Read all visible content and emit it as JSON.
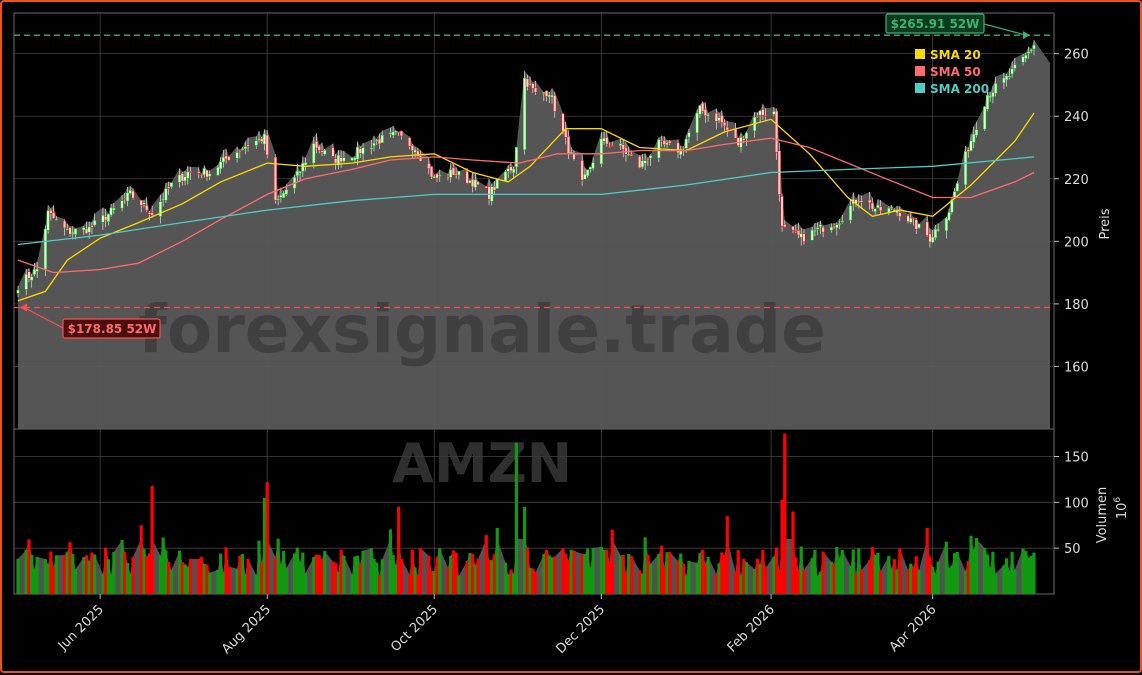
{
  "chart_data": {
    "type": "candlestick",
    "ticker_watermark": "AMZN",
    "site_watermark": "forexsignale.trade",
    "price_ylabel": "Preis",
    "volume_ylabel": "Volumen",
    "volume_unit": "10",
    "volume_unit_exp": "6",
    "price_ylim": [
      140,
      273
    ],
    "price_yticks": [
      160,
      180,
      200,
      220,
      240,
      260
    ],
    "volume_ylim": [
      0,
      180
    ],
    "volume_yticks": [
      50,
      100,
      150
    ],
    "x_ticks": [
      {
        "date": "2025-06-01",
        "label": "Jun 2025"
      },
      {
        "date": "2025-08-01",
        "label": "Aug 2025"
      },
      {
        "date": "2025-10-01",
        "label": "Oct 2025"
      },
      {
        "date": "2025-12-01",
        "label": "Dec 2025"
      },
      {
        "date": "2026-02-01",
        "label": "Feb 2026"
      },
      {
        "date": "2026-04-01",
        "label": "Apr 2026"
      }
    ],
    "high_52w": {
      "value": 265.91,
      "label": "$265.91 52W"
    },
    "low_52w": {
      "value": 178.85,
      "label": "$178.85 52W"
    },
    "legend": [
      {
        "label": "SMA 20",
        "color": "#ffd700"
      },
      {
        "label": "SMA 50",
        "color": "#ff6b6b"
      },
      {
        "label": "SMA 200",
        "color": "#4ecdc4"
      }
    ],
    "legend_placement": "top-right",
    "colors": {
      "up": "#00c800",
      "down": "#ff0000",
      "area": "#5a5a5a",
      "high_line": "#3cb371",
      "low_line": "#ff4d4d"
    },
    "close_anchors": [
      [
        "2025-05-02",
        186
      ],
      [
        "2025-05-09",
        191
      ],
      [
        "2025-05-13",
        209
      ],
      [
        "2025-05-20",
        203
      ],
      [
        "2025-05-28",
        204
      ],
      [
        "2025-06-06",
        210
      ],
      [
        "2025-06-12",
        215
      ],
      [
        "2025-06-20",
        209
      ],
      [
        "2025-06-27",
        218
      ],
      [
        "2025-07-03",
        222
      ],
      [
        "2025-07-11",
        222
      ],
      [
        "2025-07-18",
        227
      ],
      [
        "2025-07-25",
        231
      ],
      [
        "2025-07-31",
        233
      ],
      [
        "2025-08-04",
        212
      ],
      [
        "2025-08-12",
        221
      ],
      [
        "2025-08-18",
        231
      ],
      [
        "2025-08-25",
        226
      ],
      [
        "2025-09-02",
        228
      ],
      [
        "2025-09-10",
        232
      ],
      [
        "2025-09-17",
        234
      ],
      [
        "2025-09-24",
        230
      ],
      [
        "2025-10-01",
        220
      ],
      [
        "2025-10-08",
        222
      ],
      [
        "2025-10-15",
        219
      ],
      [
        "2025-10-21",
        215
      ],
      [
        "2025-10-27",
        222
      ],
      [
        "2025-10-30",
        224
      ],
      [
        "2025-11-03",
        252
      ],
      [
        "2025-11-07",
        247
      ],
      [
        "2025-11-12",
        248
      ],
      [
        "2025-11-18",
        232
      ],
      [
        "2025-11-24",
        218
      ],
      [
        "2025-12-01",
        232
      ],
      [
        "2025-12-08",
        230
      ],
      [
        "2025-12-15",
        224
      ],
      [
        "2025-12-22",
        231
      ],
      [
        "2025-12-30",
        229
      ],
      [
        "2026-01-06",
        242
      ],
      [
        "2026-01-13",
        239
      ],
      [
        "2026-01-20",
        231
      ],
      [
        "2026-01-27",
        241
      ],
      [
        "2026-02-02",
        241
      ],
      [
        "2026-02-05",
        204
      ],
      [
        "2026-02-12",
        201
      ],
      [
        "2026-02-19",
        204
      ],
      [
        "2026-02-26",
        207
      ],
      [
        "2026-03-05",
        214
      ],
      [
        "2026-03-12",
        210
      ],
      [
        "2026-03-19",
        210
      ],
      [
        "2026-03-26",
        205
      ],
      [
        "2026-03-31",
        201
      ],
      [
        "2026-04-07",
        210
      ],
      [
        "2026-04-14",
        230
      ],
      [
        "2026-04-21",
        247
      ],
      [
        "2026-04-28",
        252
      ],
      [
        "2026-05-05",
        259
      ],
      [
        "2026-05-08",
        263
      ]
    ],
    "volume_spikes": [
      [
        "2025-08-01",
        122
      ],
      [
        "2025-07-31",
        105
      ],
      [
        "2025-06-20",
        118
      ],
      [
        "2025-11-01",
        165
      ],
      [
        "2025-11-03",
        95
      ],
      [
        "2025-09-18",
        95
      ],
      [
        "2026-02-06",
        175
      ],
      [
        "2026-02-05",
        103
      ],
      [
        "2026-02-09",
        90
      ],
      [
        "2025-06-16",
        75
      ],
      [
        "2025-10-24",
        72
      ],
      [
        "2026-01-16",
        85
      ]
    ],
    "series": [
      {
        "name": "SMA 20",
        "values": [
          [
            "2025-05-02",
            181
          ],
          [
            "2025-05-12",
            184
          ],
          [
            "2025-05-20",
            194
          ],
          [
            "2025-06-01",
            201
          ],
          [
            "2025-06-15",
            206
          ],
          [
            "2025-07-01",
            212
          ],
          [
            "2025-07-15",
            219
          ],
          [
            "2025-08-01",
            225
          ],
          [
            "2025-08-15",
            224
          ],
          [
            "2025-09-01",
            225
          ],
          [
            "2025-09-15",
            227
          ],
          [
            "2025-10-01",
            228
          ],
          [
            "2025-10-15",
            222
          ],
          [
            "2025-10-28",
            219
          ],
          [
            "2025-11-05",
            224
          ],
          [
            "2025-11-18",
            236
          ],
          [
            "2025-12-01",
            236
          ],
          [
            "2025-12-15",
            230
          ],
          [
            "2026-01-01",
            229
          ],
          [
            "2026-01-15",
            235
          ],
          [
            "2026-02-01",
            239
          ],
          [
            "2026-02-15",
            228
          ],
          [
            "2026-03-01",
            214
          ],
          [
            "2026-03-10",
            208
          ],
          [
            "2026-03-20",
            210
          ],
          [
            "2026-04-01",
            208
          ],
          [
            "2026-04-15",
            218
          ],
          [
            "2026-05-01",
            232
          ],
          [
            "2026-05-08",
            241
          ]
        ]
      },
      {
        "name": "SMA 50",
        "values": [
          [
            "2025-05-02",
            194
          ],
          [
            "2025-05-15",
            190
          ],
          [
            "2025-06-01",
            191
          ],
          [
            "2025-06-15",
            193
          ],
          [
            "2025-07-01",
            200
          ],
          [
            "2025-07-15",
            207
          ],
          [
            "2025-08-01",
            215
          ],
          [
            "2025-08-15",
            220
          ],
          [
            "2025-09-01",
            223
          ],
          [
            "2025-09-15",
            226
          ],
          [
            "2025-10-01",
            227
          ],
          [
            "2025-10-15",
            226
          ],
          [
            "2025-11-01",
            225
          ],
          [
            "2025-11-15",
            228
          ],
          [
            "2025-12-01",
            228
          ],
          [
            "2025-12-15",
            229
          ],
          [
            "2026-01-01",
            229
          ],
          [
            "2026-01-15",
            231
          ],
          [
            "2026-02-01",
            233
          ],
          [
            "2026-02-15",
            230
          ],
          [
            "2026-03-01",
            225
          ],
          [
            "2026-03-15",
            220
          ],
          [
            "2026-04-01",
            214
          ],
          [
            "2026-04-15",
            214
          ],
          [
            "2026-05-01",
            219
          ],
          [
            "2026-05-08",
            222
          ]
        ]
      },
      {
        "name": "SMA 200",
        "values": [
          [
            "2025-05-02",
            199
          ],
          [
            "2025-06-01",
            202
          ],
          [
            "2025-07-01",
            206
          ],
          [
            "2025-08-01",
            210
          ],
          [
            "2025-09-01",
            213
          ],
          [
            "2025-10-01",
            215
          ],
          [
            "2025-11-01",
            215
          ],
          [
            "2025-12-01",
            215
          ],
          [
            "2026-01-01",
            218
          ],
          [
            "2026-02-01",
            222
          ],
          [
            "2026-03-01",
            223
          ],
          [
            "2026-04-01",
            224
          ],
          [
            "2026-05-08",
            227
          ]
        ]
      }
    ]
  }
}
